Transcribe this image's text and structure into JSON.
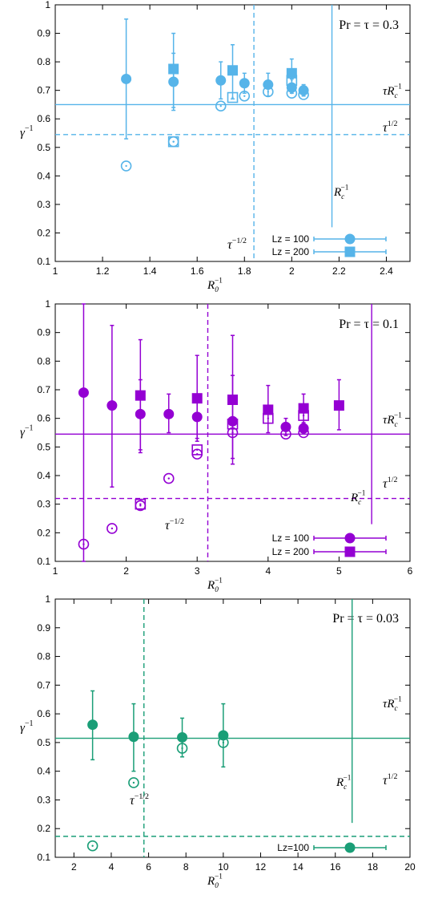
{
  "chart_data": [
    {
      "type": "scatter",
      "title": "Pr = τ = 0.3",
      "xlabel": "R0^-1",
      "ylabel": "γ^-1",
      "xlim": [
        1,
        2.5
      ],
      "ylim": [
        0.1,
        1
      ],
      "x_ticks": [
        1,
        1.2,
        1.4,
        1.6,
        1.8,
        2,
        2.2,
        2.4
      ],
      "x_tick_labels": [
        "1",
        "1.2",
        "1.4",
        "1.6",
        "1.8",
        "2",
        "2.2",
        "2.4"
      ],
      "y_ticks": [
        0.1,
        0.2,
        0.3,
        0.4,
        0.5,
        0.6,
        0.7,
        0.8,
        0.9,
        1
      ],
      "y_tick_labels": [
        "0.1",
        "0.2",
        "0.3",
        "0.4",
        "0.5",
        "0.6",
        "0.7",
        "0.8",
        "0.9",
        "1"
      ],
      "color": "#56b4e9",
      "legend_position": "bottom-right",
      "series": [
        {
          "name": "Lz = 100",
          "marker": "circle",
          "filled": true,
          "x": [
            1.3,
            1.5,
            1.7,
            1.8,
            1.9,
            2.0,
            2.05
          ],
          "y": [
            0.74,
            0.73,
            0.735,
            0.725,
            0.72,
            0.71,
            0.7
          ],
          "y_low": [
            0.53,
            0.63,
            0.67,
            0.69,
            0.68,
            0.69,
            0.68
          ],
          "y_high": [
            0.95,
            0.83,
            0.8,
            0.76,
            0.76,
            0.74,
            0.72
          ]
        },
        {
          "name": "Lz = 200",
          "marker": "square",
          "filled": true,
          "x": [
            1.5,
            1.75,
            2.0
          ],
          "y": [
            0.775,
            0.77,
            0.76
          ],
          "y_low": [
            0.64,
            0.67,
            0.7
          ],
          "y_high": [
            0.9,
            0.86,
            0.81
          ]
        },
        {
          "marker": "circle",
          "filled": false,
          "x": [
            1.3,
            1.5,
            1.7,
            1.8,
            1.9,
            2.0,
            2.05
          ],
          "y": [
            0.435,
            0.52,
            0.645,
            0.68,
            0.695,
            0.69,
            0.685
          ]
        },
        {
          "marker": "square",
          "filled": false,
          "x": [
            1.5,
            1.75,
            2.0
          ],
          "y": [
            0.52,
            0.675,
            0.735
          ]
        }
      ],
      "reference_lines": [
        {
          "orientation": "horizontal",
          "style": "solid",
          "value": 0.65,
          "label": "τR_c^-1"
        },
        {
          "orientation": "horizontal",
          "style": "dashed",
          "value": 0.545,
          "label": "τ^1/2"
        },
        {
          "orientation": "vertical",
          "style": "dashed",
          "value": 1.84,
          "label": "τ^-1/2"
        },
        {
          "orientation": "vertical",
          "style": "solid",
          "value": 2.17,
          "y_from": 0.22,
          "label": "R_c^-1"
        }
      ]
    },
    {
      "type": "scatter",
      "title": "Pr = τ = 0.1",
      "xlabel": "R0^-1",
      "ylabel": "γ^-1",
      "xlim": [
        1,
        6
      ],
      "ylim": [
        0.1,
        1
      ],
      "x_ticks": [
        1,
        2,
        3,
        4,
        5,
        6
      ],
      "x_tick_labels": [
        "1",
        "2",
        "3",
        "4",
        "5",
        "6"
      ],
      "y_ticks": [
        0.1,
        0.2,
        0.3,
        0.4,
        0.5,
        0.6,
        0.7,
        0.8,
        0.9,
        1
      ],
      "y_tick_labels": [
        "0.1",
        "0.2",
        "0.3",
        "0.4",
        "0.5",
        "0.6",
        "0.7",
        "0.8",
        "0.9",
        "1"
      ],
      "color": "#9400d3",
      "legend_position": "bottom-right",
      "series": [
        {
          "name": "Lz = 100",
          "marker": "circle",
          "filled": true,
          "x": [
            1.4,
            1.8,
            2.2,
            2.6,
            3.0,
            3.5,
            4.25,
            4.5
          ],
          "y": [
            0.69,
            0.645,
            0.615,
            0.615,
            0.605,
            0.59,
            0.57,
            0.565
          ],
          "y_low": [
            0.1,
            0.36,
            0.49,
            0.55,
            0.53,
            0.44,
            0.54,
            0.545
          ],
          "y_high": [
            1.0,
            0.925,
            0.735,
            0.685,
            0.68,
            0.75,
            0.6,
            0.585
          ]
        },
        {
          "name": "Lz = 200",
          "marker": "square",
          "filled": true,
          "x": [
            2.2,
            3.0,
            3.5,
            4.0,
            4.5,
            5.0
          ],
          "y": [
            0.68,
            0.67,
            0.665,
            0.63,
            0.635,
            0.645
          ],
          "y_low": [
            0.48,
            0.52,
            0.46,
            0.55,
            0.58,
            0.56
          ],
          "y_high": [
            0.875,
            0.82,
            0.89,
            0.715,
            0.685,
            0.735
          ]
        },
        {
          "marker": "circle",
          "filled": false,
          "x": [
            1.4,
            1.8,
            2.2,
            2.6,
            3.0,
            3.5,
            4.25,
            4.5
          ],
          "y": [
            0.16,
            0.215,
            0.295,
            0.39,
            0.475,
            0.55,
            0.545,
            0.55
          ]
        },
        {
          "marker": "square",
          "filled": false,
          "x": [
            2.2,
            3.0,
            3.5,
            4.0,
            4.5
          ],
          "y": [
            0.3,
            0.49,
            0.58,
            0.6,
            0.61
          ]
        }
      ],
      "reference_lines": [
        {
          "orientation": "horizontal",
          "style": "solid",
          "value": 0.545,
          "label": "τR_c^-1"
        },
        {
          "orientation": "horizontal",
          "style": "dashed",
          "value": 0.32,
          "label": "τ^1/2"
        },
        {
          "orientation": "vertical",
          "style": "dashed",
          "value": 3.15,
          "label": "τ^-1/2"
        },
        {
          "orientation": "vertical",
          "style": "solid",
          "value": 5.46,
          "y_from": 0.23,
          "label": "R_c^-1"
        }
      ]
    },
    {
      "type": "scatter",
      "title": "Pr = τ = 0.03",
      "xlabel": "R0^-1",
      "ylabel": "γ^-1",
      "xlim": [
        1,
        20
      ],
      "ylim": [
        0.1,
        1
      ],
      "x_ticks": [
        2,
        4,
        6,
        8,
        10,
        12,
        14,
        16,
        18,
        20
      ],
      "x_tick_labels": [
        "2",
        "4",
        "6",
        "8",
        "10",
        "12",
        "14",
        "16",
        "18",
        "20"
      ],
      "y_ticks": [
        0.1,
        0.2,
        0.3,
        0.4,
        0.5,
        0.6,
        0.7,
        0.8,
        0.9,
        1
      ],
      "y_tick_labels": [
        "0.1",
        "0.2",
        "0.3",
        "0.4",
        "0.5",
        "0.6",
        "0.7",
        "0.8",
        "0.9",
        "1"
      ],
      "color": "#1a9e77",
      "legend_position": "bottom-right",
      "series": [
        {
          "name": "Lz=100",
          "marker": "circle",
          "filled": true,
          "x": [
            3,
            5.2,
            7.8,
            10
          ],
          "y": [
            0.562,
            0.52,
            0.518,
            0.525
          ],
          "y_low": [
            0.44,
            0.4,
            0.45,
            0.415
          ],
          "y_high": [
            0.68,
            0.635,
            0.585,
            0.635
          ]
        },
        {
          "marker": "circle",
          "filled": false,
          "x": [
            3,
            5.2,
            7.8,
            10
          ],
          "y": [
            0.14,
            0.36,
            0.48,
            0.5
          ]
        }
      ],
      "reference_lines": [
        {
          "orientation": "horizontal",
          "style": "solid",
          "value": 0.515,
          "label": "τR_c^-1"
        },
        {
          "orientation": "horizontal",
          "style": "dashed",
          "value": 0.173,
          "label": "τ^1/2"
        },
        {
          "orientation": "vertical",
          "style": "dashed",
          "value": 5.75,
          "label": "τ^-1/2"
        },
        {
          "orientation": "vertical",
          "style": "solid",
          "value": 16.9,
          "y_from": 0.22,
          "label": "R_c^-1"
        }
      ]
    }
  ]
}
